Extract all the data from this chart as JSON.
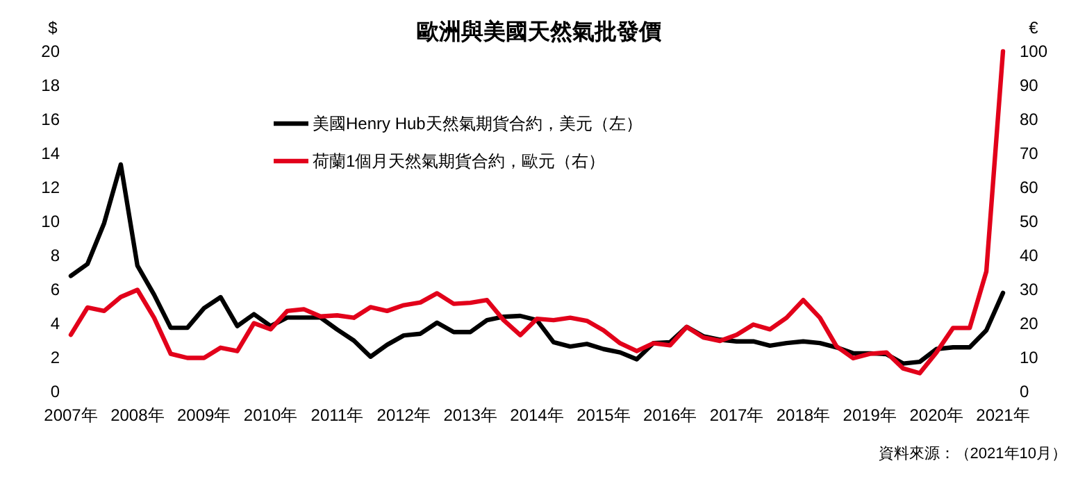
{
  "chart_data": {
    "type": "line",
    "title": "歐洲與美國天然氣批發價",
    "ylabel": "$",
    "y2label": "€",
    "annotations": [
      "資料來源：（2021年10月）"
    ],
    "x": [
      2007,
      2007.25,
      2007.5,
      2007.75,
      2008,
      2008.25,
      2008.5,
      2008.75,
      2009,
      2009.25,
      2009.5,
      2009.75,
      2010,
      2010.25,
      2010.5,
      2010.75,
      2011,
      2011.25,
      2011.5,
      2011.75,
      2012,
      2012.25,
      2012.5,
      2012.75,
      2013,
      2013.25,
      2013.5,
      2013.75,
      2014,
      2014.25,
      2014.5,
      2014.75,
      2015,
      2015.25,
      2015.5,
      2015.75,
      2016,
      2016.25,
      2016.5,
      2016.75,
      2017,
      2017.25,
      2017.5,
      2017.75,
      2018,
      2018.25,
      2018.5,
      2018.75,
      2019,
      2019.25,
      2019.5,
      2019.75,
      2020,
      2020.25,
      2020.5,
      2020.75,
      2021
    ],
    "series": [
      {
        "name": "美國Henry Hub天然氣期貨合約，美元（左）",
        "color": "#000000",
        "values": [
          6.8,
          7.5,
          9.9,
          13.35,
          7.4,
          5.7,
          3.75,
          3.75,
          4.9,
          5.55,
          3.85,
          4.55,
          3.85,
          4.35,
          4.35,
          4.35,
          3.65,
          3.0,
          2.05,
          2.75,
          3.3,
          3.4,
          4.05,
          3.5,
          3.5,
          4.2,
          4.4,
          4.45,
          4.2,
          2.9,
          2.65,
          2.8,
          2.5,
          2.3,
          1.9,
          2.85,
          2.9,
          3.8,
          3.25,
          3.05,
          2.95,
          2.95,
          2.7,
          2.85,
          2.95,
          2.85,
          2.6,
          2.25,
          2.25,
          2.2,
          1.65,
          1.75,
          2.5,
          2.6,
          2.6,
          3.6,
          5.8
        ]
      },
      {
        "name": "荷蘭1個月天然氣期貨合約，歐元（右）",
        "color": "#e2001a",
        "axis": "y2",
        "values": [
          16.7,
          24.7,
          23.7,
          27.8,
          29.9,
          21.7,
          11.1,
          9.9,
          9.9,
          12.9,
          11.9,
          20.1,
          18.3,
          23.7,
          24.2,
          22.1,
          22.4,
          21.7,
          24.8,
          23.7,
          25.4,
          26.2,
          28.9,
          25.8,
          26.1,
          26.9,
          21.0,
          16.6,
          21.4,
          21.0,
          21.7,
          20.8,
          18.0,
          14.2,
          11.9,
          14.2,
          13.6,
          19.0,
          15.9,
          14.9,
          16.7,
          19.7,
          18.3,
          21.7,
          26.9,
          21.7,
          13.3,
          9.8,
          11.1,
          11.5,
          6.8,
          5.4,
          11.5,
          18.7,
          18.7,
          35.3,
          100
        ]
      }
    ],
    "xlim": [
      2007,
      2021
    ],
    "xticks": [
      {
        "value": 2007,
        "label": "2007年"
      },
      {
        "value": 2008,
        "label": "2008年"
      },
      {
        "value": 2009,
        "label": "2009年"
      },
      {
        "value": 2010,
        "label": "2010年"
      },
      {
        "value": 2011,
        "label": "2011年"
      },
      {
        "value": 2012,
        "label": "2012年"
      },
      {
        "value": 2013,
        "label": "2013年"
      },
      {
        "value": 2014,
        "label": "2014年"
      },
      {
        "value": 2015,
        "label": "2015年"
      },
      {
        "value": 2016,
        "label": "2016年"
      },
      {
        "value": 2017,
        "label": "2017年"
      },
      {
        "value": 2018,
        "label": "2018年"
      },
      {
        "value": 2019,
        "label": "2019年"
      },
      {
        "value": 2020,
        "label": "2020年"
      },
      {
        "value": 2021,
        "label": "2021年"
      }
    ],
    "ylim": [
      0,
      20
    ],
    "yticks": [
      0,
      2,
      4,
      6,
      8,
      10,
      12,
      14,
      16,
      18,
      20
    ],
    "y2lim": [
      0,
      100
    ],
    "y2ticks": [
      0,
      10,
      20,
      30,
      40,
      50,
      60,
      70,
      80,
      90,
      100
    ],
    "legend": "top",
    "grid": false,
    "marker": "none",
    "line_style": "solid"
  }
}
